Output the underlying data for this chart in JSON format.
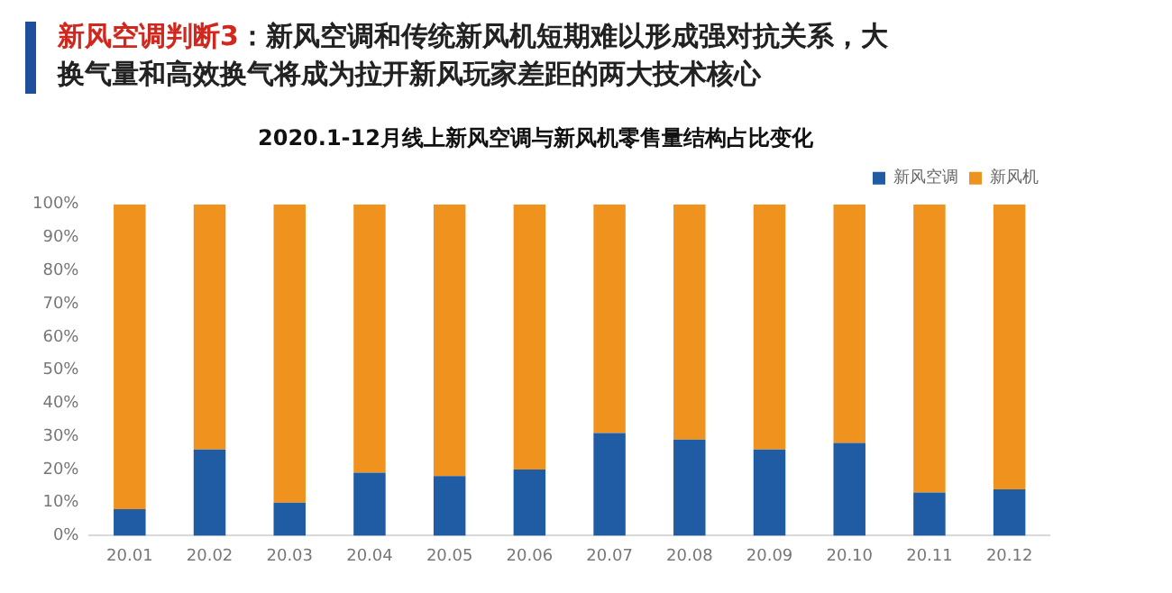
{
  "chart_data": {
    "type": "bar",
    "title": "新风空调判断3：新风空调和传统新风机短期难以形成强对抗关系，大换气量和高效换气将成为拉开新风玩家差距的两大技术核心",
    "subtitle": "2020.1-12月线上新风空调与新风机零售量结构占比变化",
    "categories": [
      "20.01",
      "20.02",
      "20.03",
      "20.04",
      "20.05",
      "20.06",
      "20.07",
      "20.08",
      "20.09",
      "20.10",
      "20.11",
      "20.12"
    ],
    "stacked": true,
    "series": [
      {
        "name": "新风空调",
        "color": "#1f5ca3",
        "values": [
          8,
          26,
          10,
          19,
          18,
          20,
          31,
          29,
          26,
          28,
          13,
          14
        ]
      },
      {
        "name": "新风机",
        "color": "#f0931e",
        "values": [
          92,
          74,
          90,
          81,
          82,
          80,
          69,
          71,
          74,
          72,
          87,
          86
        ]
      }
    ],
    "ylim": [
      0,
      100
    ],
    "yticks": [
      {
        "value": 0,
        "label": "0%"
      },
      {
        "value": 10,
        "label": "10%"
      },
      {
        "value": 20,
        "label": "20%"
      },
      {
        "value": 30,
        "label": "30%"
      },
      {
        "value": 40,
        "label": "40%"
      },
      {
        "value": 50,
        "label": "50%"
      },
      {
        "value": 60,
        "label": "60%"
      },
      {
        "value": 70,
        "label": "70%"
      },
      {
        "value": 80,
        "label": "80%"
      },
      {
        "value": 90,
        "label": "90%"
      },
      {
        "value": 100,
        "label": "100%"
      }
    ],
    "grid": false,
    "legend": "top right"
  }
}
